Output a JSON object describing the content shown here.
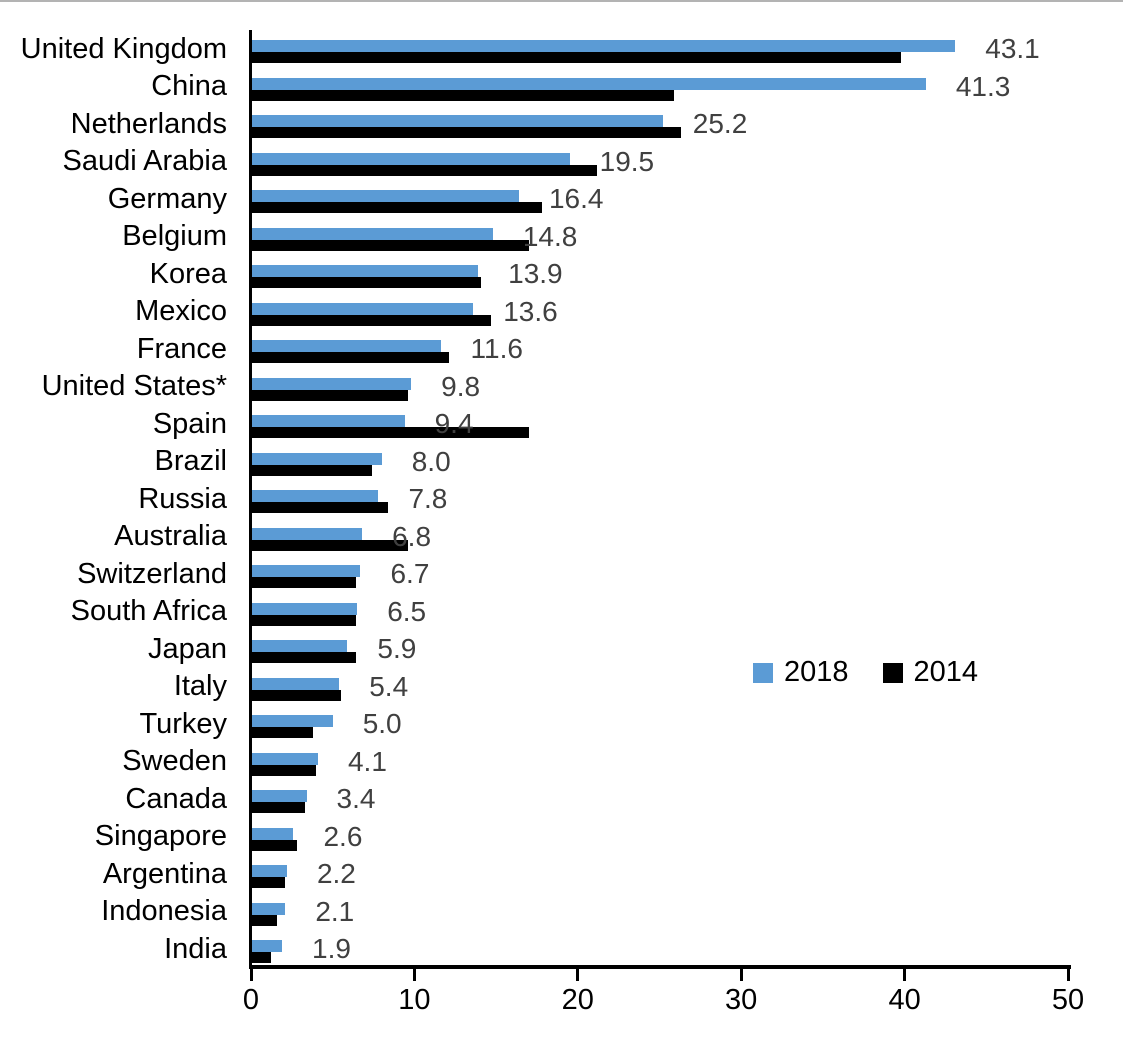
{
  "chart_data": {
    "type": "bar",
    "orientation": "horizontal",
    "title": "",
    "xlabel": "",
    "ylabel": "",
    "xlim": [
      0,
      50
    ],
    "x_ticks": [
      0,
      10,
      20,
      30,
      40,
      50
    ],
    "grid": false,
    "legend_position": "middle-right",
    "categories": [
      "United Kingdom",
      "China",
      "Netherlands",
      "Saudi Arabia",
      "Germany",
      "Belgium",
      "Korea",
      "Mexico",
      "France",
      "United States*",
      "Spain",
      "Brazil",
      "Russia",
      "Australia",
      "Switzerland",
      "South Africa",
      "Japan",
      "Italy",
      "Turkey",
      "Sweden",
      "Canada",
      "Singapore",
      "Argentina",
      "Indonesia",
      "India"
    ],
    "series": [
      {
        "name": "2018",
        "color": "#5B9BD5",
        "values": [
          43.1,
          41.3,
          25.2,
          19.5,
          16.4,
          14.8,
          13.9,
          13.6,
          11.6,
          9.8,
          9.4,
          8.0,
          7.8,
          6.8,
          6.7,
          6.5,
          5.9,
          5.4,
          5.0,
          4.1,
          3.4,
          2.6,
          2.2,
          2.1,
          1.9
        ]
      },
      {
        "name": "2014",
        "color": "#000000",
        "values": [
          39.8,
          25.9,
          26.3,
          21.2,
          17.8,
          17.0,
          14.1,
          14.7,
          12.1,
          9.6,
          17.0,
          7.4,
          8.4,
          9.6,
          6.4,
          6.4,
          6.4,
          5.5,
          3.8,
          4.0,
          3.3,
          2.8,
          2.1,
          1.6,
          1.2
        ]
      }
    ],
    "value_labels": [
      "43.1",
      "41.3",
      "25.2",
      "19.5",
      "16.4",
      "14.8",
      "13.9",
      "13.6",
      "11.6",
      "9.8",
      "9.4",
      "8.0",
      "7.8",
      "6.8",
      "6.7",
      "6.5",
      "5.9",
      "5.4",
      "5.0",
      "4.1",
      "3.4",
      "2.6",
      "2.2",
      "2.1",
      "1.9"
    ],
    "value_label_series": "2018",
    "value_label_color": "#404040",
    "axis_color": "#000000"
  }
}
